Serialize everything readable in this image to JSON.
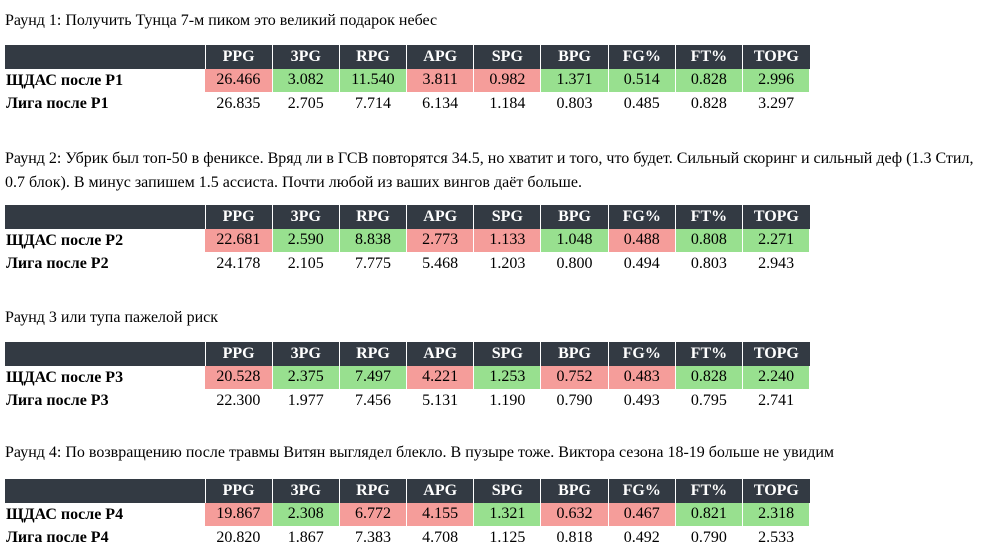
{
  "colors": {
    "header_bg": "#333a43",
    "header_fg": "#ffffff",
    "good": "#98e08f",
    "bad": "#f59d9a"
  },
  "stat_headers": [
    "PPG",
    "3PG",
    "RPG",
    "APG",
    "SPG",
    "BPG",
    "FG%",
    "FT%",
    "TOPG"
  ],
  "rounds": [
    {
      "caption": "Раунд 1: Получить Тунца 7-м пиком это великий подарок небес",
      "team_label": "ЩДАС после Р1",
      "team_values": [
        "26.466",
        "3.082",
        "11.540",
        "3.811",
        "0.982",
        "1.371",
        "0.514",
        "0.828",
        "2.996"
      ],
      "team_status": [
        "bad",
        "good",
        "good",
        "bad",
        "bad",
        "good",
        "good",
        "good",
        "good"
      ],
      "league_label": "Лига после Р1",
      "league_values": [
        "26.835",
        "2.705",
        "7.714",
        "6.134",
        "1.184",
        "0.803",
        "0.485",
        "0.828",
        "3.297"
      ]
    },
    {
      "caption": "Раунд 2: Убрик был топ-50 в фениксе. Вряд ли в ГСВ повторятся 34.5, но хватит и того, что будет. Сильный скоринг и сильный деф (1.3 Стил, 0.7 блок). В минус запишем 1.5 ассиста. Почти любой из ваших вингов даёт больше.",
      "team_label": "ЩДАС после Р2",
      "team_values": [
        "22.681",
        "2.590",
        "8.838",
        "2.773",
        "1.133",
        "1.048",
        "0.488",
        "0.808",
        "2.271"
      ],
      "team_status": [
        "bad",
        "good",
        "good",
        "bad",
        "bad",
        "good",
        "bad",
        "good",
        "good"
      ],
      "league_label": "Лига после Р2",
      "league_values": [
        "24.178",
        "2.105",
        "7.775",
        "5.468",
        "1.203",
        "0.800",
        "0.494",
        "0.803",
        "2.943"
      ]
    },
    {
      "caption": "Раунд 3 или тупа пажелой риск",
      "team_label": "ЩДАС после Р3",
      "team_values": [
        "20.528",
        "2.375",
        "7.497",
        "4.221",
        "1.253",
        "0.752",
        "0.483",
        "0.828",
        "2.240"
      ],
      "team_status": [
        "bad",
        "good",
        "good",
        "bad",
        "good",
        "bad",
        "bad",
        "good",
        "good"
      ],
      "league_label": "Лига после Р3",
      "league_values": [
        "22.300",
        "1.977",
        "7.456",
        "5.131",
        "1.190",
        "0.790",
        "0.493",
        "0.795",
        "2.741"
      ]
    },
    {
      "caption": "Раунд 4: По возвращению после травмы Витян выглядел блекло. В пузыре тоже. Виктора сезона 18-19 больше не увидим",
      "team_label": "ЩДАС после Р4",
      "team_values": [
        "19.867",
        "2.308",
        "6.772",
        "4.155",
        "1.321",
        "0.632",
        "0.467",
        "0.821",
        "2.318"
      ],
      "team_status": [
        "bad",
        "good",
        "bad",
        "bad",
        "good",
        "bad",
        "bad",
        "good",
        "good"
      ],
      "league_label": "Лига после Р4",
      "league_values": [
        "20.820",
        "1.867",
        "7.383",
        "4.708",
        "1.125",
        "0.818",
        "0.492",
        "0.790",
        "2.533"
      ]
    }
  ]
}
